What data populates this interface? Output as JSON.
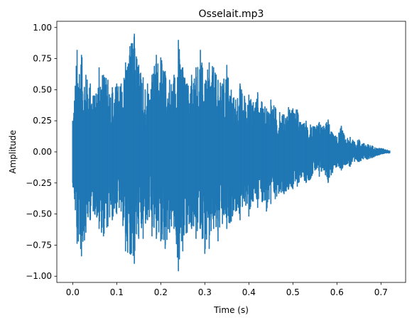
{
  "chart_data": {
    "type": "line",
    "title": "Osselait.mp3",
    "xlabel": "Time (s)",
    "ylabel": "Amplitude",
    "xlim": [
      -0.036,
      0.756
    ],
    "ylim": [
      -1.05,
      1.05
    ],
    "xticks": [
      0.0,
      0.1,
      0.2,
      0.3,
      0.4,
      0.5,
      0.6,
      0.7
    ],
    "xtick_labels": [
      "0.0",
      "0.1",
      "0.2",
      "0.3",
      "0.4",
      "0.5",
      "0.6",
      "0.7"
    ],
    "yticks": [
      -1.0,
      -0.75,
      -0.5,
      -0.25,
      0.0,
      0.25,
      0.5,
      0.75,
      1.0
    ],
    "ytick_labels": [
      "−1.00",
      "−0.75",
      "−0.50",
      "−0.25",
      "0.00",
      "0.25",
      "0.50",
      "0.75",
      "1.00"
    ],
    "grid": false,
    "color": "#1f77b4",
    "series": [
      {
        "x": [
          0.0,
          0.01,
          0.02,
          0.03,
          0.04,
          0.05,
          0.06,
          0.07,
          0.08,
          0.09,
          0.1,
          0.11,
          0.12,
          0.13,
          0.14,
          0.15,
          0.16,
          0.17,
          0.18,
          0.19,
          0.2,
          0.21,
          0.22,
          0.23,
          0.24,
          0.25,
          0.26,
          0.27,
          0.28,
          0.29,
          0.3,
          0.31,
          0.32,
          0.33,
          0.34,
          0.35,
          0.36,
          0.37,
          0.38,
          0.39,
          0.4,
          0.41,
          0.42,
          0.43,
          0.44,
          0.45,
          0.46,
          0.47,
          0.48,
          0.49,
          0.5,
          0.51,
          0.52,
          0.53,
          0.54,
          0.55,
          0.56,
          0.57,
          0.58,
          0.59,
          0.6,
          0.61,
          0.62,
          0.63,
          0.64,
          0.65,
          0.66,
          0.67,
          0.68,
          0.69,
          0.7,
          0.71,
          0.72
        ],
        "y_max": [
          0.25,
          0.82,
          0.78,
          0.62,
          0.55,
          0.45,
          0.68,
          0.62,
          0.58,
          0.52,
          0.55,
          0.55,
          0.72,
          0.85,
          0.95,
          0.7,
          0.6,
          0.55,
          0.62,
          0.78,
          0.76,
          0.65,
          0.58,
          0.62,
          0.9,
          0.68,
          0.55,
          0.62,
          0.68,
          0.82,
          0.55,
          0.72,
          0.68,
          0.58,
          0.55,
          0.7,
          0.5,
          0.42,
          0.55,
          0.45,
          0.46,
          0.4,
          0.48,
          0.4,
          0.35,
          0.42,
          0.36,
          0.32,
          0.3,
          0.36,
          0.35,
          0.34,
          0.22,
          0.25,
          0.22,
          0.2,
          0.24,
          0.21,
          0.26,
          0.15,
          0.12,
          0.21,
          0.1,
          0.12,
          0.08,
          0.1,
          0.07,
          0.06,
          0.05,
          0.03,
          0.03,
          0.02,
          0.01
        ],
        "y_min": [
          -0.25,
          -0.74,
          -0.84,
          -0.65,
          -0.55,
          -0.5,
          -0.62,
          -0.68,
          -0.6,
          -0.55,
          -0.5,
          -0.48,
          -0.8,
          -0.82,
          -0.9,
          -0.7,
          -0.7,
          -0.55,
          -0.68,
          -0.7,
          -0.72,
          -0.78,
          -0.65,
          -0.62,
          -0.96,
          -0.8,
          -0.65,
          -0.62,
          -0.7,
          -0.62,
          -0.82,
          -0.78,
          -0.62,
          -0.72,
          -0.58,
          -0.62,
          -0.56,
          -0.48,
          -0.55,
          -0.4,
          -0.52,
          -0.4,
          -0.45,
          -0.4,
          -0.48,
          -0.42,
          -0.38,
          -0.32,
          -0.34,
          -0.3,
          -0.3,
          -0.28,
          -0.2,
          -0.25,
          -0.22,
          -0.15,
          -0.2,
          -0.15,
          -0.25,
          -0.17,
          -0.12,
          -0.15,
          -0.1,
          -0.12,
          -0.08,
          -0.08,
          -0.06,
          -0.06,
          -0.05,
          -0.03,
          -0.02,
          -0.01,
          -0.01
        ]
      }
    ]
  }
}
